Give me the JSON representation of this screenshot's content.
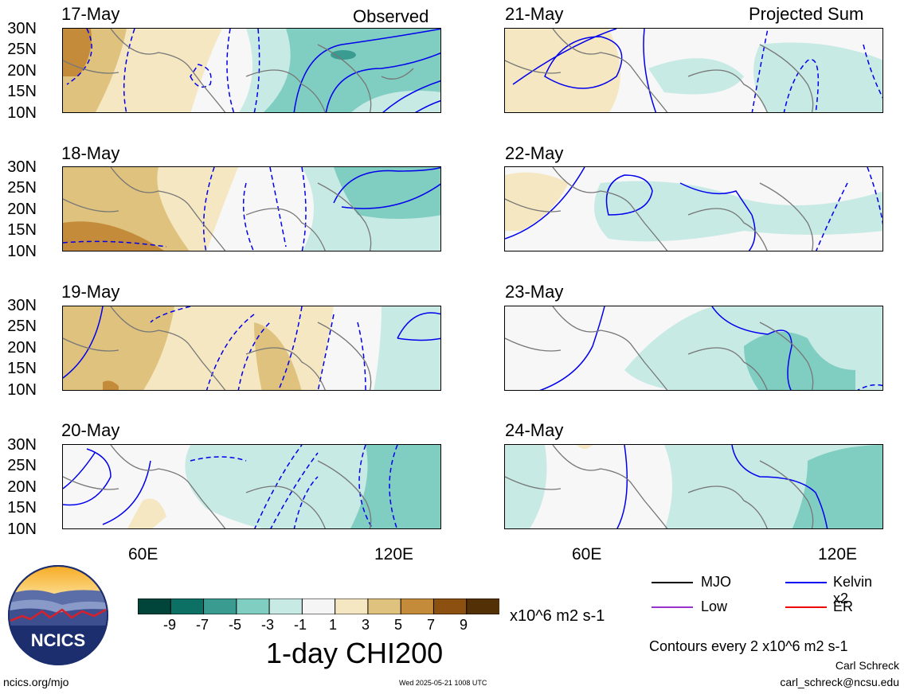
{
  "columns": {
    "left_label": "Observed",
    "right_label": "Projected Sum"
  },
  "panels": {
    "left": [
      "17-May",
      "18-May",
      "19-May",
      "20-May"
    ],
    "right": [
      "21-May",
      "22-May",
      "23-May",
      "24-May"
    ]
  },
  "lat_labels": [
    "30N",
    "25N",
    "20N",
    "15N",
    "10N"
  ],
  "lon_labels": [
    "60E",
    "120E"
  ],
  "colorbar": {
    "labels": [
      "-9",
      "-7",
      "-5",
      "-3",
      "-1",
      "1",
      "3",
      "5",
      "7",
      "9"
    ],
    "colors": [
      "#01453a",
      "#0c7064",
      "#3a9c90",
      "#80cdc1",
      "#c7eae5",
      "#f5f5f5",
      "#f5e7c1",
      "#dfc27d",
      "#c48c3a",
      "#8c5110",
      "#543006"
    ],
    "units": "x10^6 m2 s-1",
    "title": "1-day CHI200"
  },
  "legend": {
    "items": [
      {
        "label": "MJO",
        "color": "#000000"
      },
      {
        "label": "Kelvin x2",
        "color": "#0000ee"
      },
      {
        "label": "Low",
        "color": "#9a32cd"
      },
      {
        "label": "ER",
        "color": "#ee0000"
      }
    ],
    "contour_note": "Contours every 2 x10^6 m2 s-1"
  },
  "logo": {
    "text": "NCICS"
  },
  "footer": {
    "url": "ncics.org/mjo",
    "timestamp": "Wed 2025-05-21 1008 UTC",
    "author": "Carl Schreck",
    "email": "carl_schreck@ncsu.edu"
  }
}
